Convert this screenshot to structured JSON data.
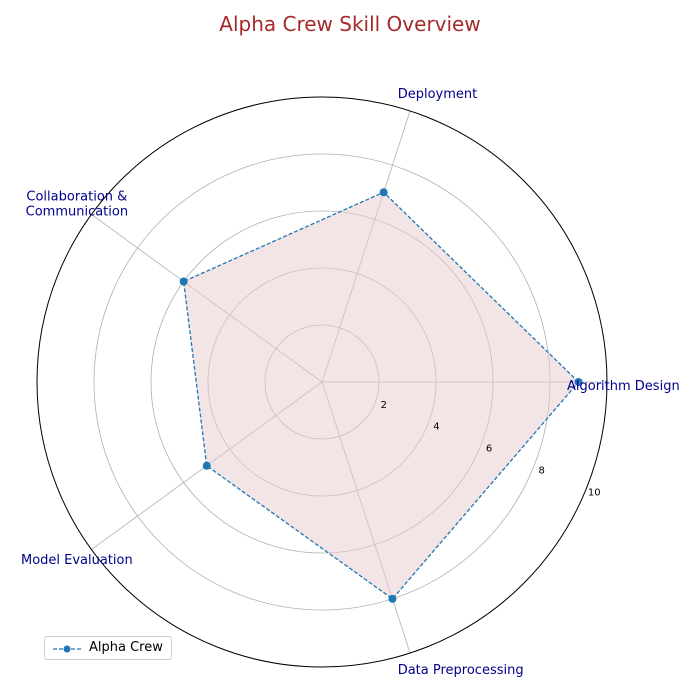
{
  "chart_data": {
    "type": "radar",
    "title": "Alpha Crew Skill Overview",
    "categories": [
      "Algorithm Design",
      "Deployment",
      "Collaboration &\nCommunication",
      "Model Evaluation",
      "Data Preprocessing"
    ],
    "series": [
      {
        "name": "Alpha Crew",
        "values": [
          9,
          7,
          6,
          5,
          8
        ]
      }
    ],
    "radial_ticks": [
      2,
      4,
      6,
      8,
      10
    ],
    "rlim": [
      0,
      10
    ],
    "grid": true,
    "legend_position": "lower-left",
    "colors": {
      "title": "#a52a2a",
      "category_labels": "#00008b",
      "line": "#1f77b4",
      "fill": "#e8cccc",
      "grid": "#b0b0b0"
    }
  }
}
